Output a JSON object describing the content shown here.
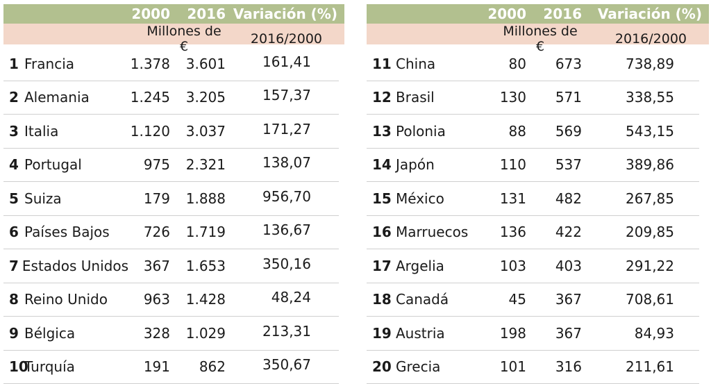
{
  "header": {
    "col_2000": "2000",
    "col_2016": "2016",
    "col_var": "Variación (%)"
  },
  "subheader": {
    "units": "Millones de €",
    "ratio": "2016/2000"
  },
  "left_rows": [
    {
      "rank": "1",
      "country": "Francia",
      "v2000": "1.378",
      "v2016": "3.601",
      "var": "161,41"
    },
    {
      "rank": "2",
      "country": "Alemania",
      "v2000": "1.245",
      "v2016": "3.205",
      "var": "157,37"
    },
    {
      "rank": "3",
      "country": "Italia",
      "v2000": "1.120",
      "v2016": "3.037",
      "var": "171,27"
    },
    {
      "rank": "4",
      "country": "Portugal",
      "v2000": "975",
      "v2016": "2.321",
      "var": "138,07"
    },
    {
      "rank": "5",
      "country": "Suiza",
      "v2000": "179",
      "v2016": "1.888",
      "var": "956,70"
    },
    {
      "rank": "6",
      "country": "Países Bajos",
      "v2000": "726",
      "v2016": "1.719",
      "var": "136,67"
    },
    {
      "rank": "7",
      "country": "Estados Unidos",
      "v2000": "367",
      "v2016": "1.653",
      "var": "350,16"
    },
    {
      "rank": "8",
      "country": "Reino Unido",
      "v2000": "963",
      "v2016": "1.428",
      "var": "48,24"
    },
    {
      "rank": "9",
      "country": "Bélgica",
      "v2000": "328",
      "v2016": "1.029",
      "var": "213,31"
    },
    {
      "rank": "10",
      "country": "Turquía",
      "v2000": "191",
      "v2016": "862",
      "var": "350,67"
    }
  ],
  "right_rows": [
    {
      "rank": "11",
      "country": "China",
      "v2000": "80",
      "v2016": "673",
      "var": "738,89"
    },
    {
      "rank": "12",
      "country": "Brasil",
      "v2000": "130",
      "v2016": "571",
      "var": "338,55"
    },
    {
      "rank": "13",
      "country": "Polonia",
      "v2000": "88",
      "v2016": "569",
      "var": "543,15"
    },
    {
      "rank": "14",
      "country": "Japón",
      "v2000": "110",
      "v2016": "537",
      "var": "389,86"
    },
    {
      "rank": "15",
      "country": "México",
      "v2000": "131",
      "v2016": "482",
      "var": "267,85"
    },
    {
      "rank": "16",
      "country": "Marruecos",
      "v2000": "136",
      "v2016": "422",
      "var": "209,85"
    },
    {
      "rank": "17",
      "country": "Argelia",
      "v2000": "103",
      "v2016": "403",
      "var": "291,22"
    },
    {
      "rank": "18",
      "country": "Canadá",
      "v2000": "45",
      "v2016": "367",
      "var": "708,61"
    },
    {
      "rank": "19",
      "country": "Austria",
      "v2000": "198",
      "v2016": "367",
      "var": "84,93"
    },
    {
      "rank": "20",
      "country": "Grecia",
      "v2000": "101",
      "v2016": "316",
      "var": "211,61"
    }
  ],
  "colors": {
    "header_bg": "#b2c08f",
    "subheader_bg": "#f3d7c9",
    "header_text": "#ffffff",
    "row_rule": "#cfcfcf"
  }
}
